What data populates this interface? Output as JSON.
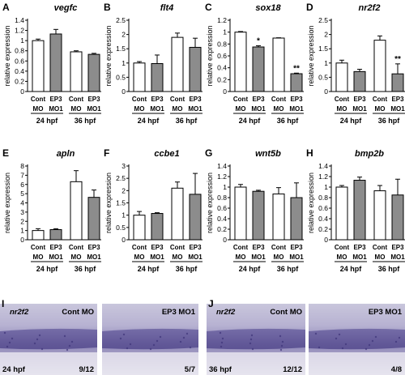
{
  "chart_data": [
    {
      "type": "bar",
      "panel": "A",
      "title": "vegfc",
      "ylabel": "relative expression",
      "ylim": [
        0,
        1.4
      ],
      "yticks": [
        "0",
        "0.2",
        "0.4",
        "0.6",
        "0.8",
        "1",
        "1.2",
        "1.4"
      ],
      "categories": [
        [
          "Cont",
          "MO"
        ],
        [
          "EP3",
          "MO1"
        ],
        [
          "Cont",
          "MO"
        ],
        [
          "EP3",
          "MO1"
        ]
      ],
      "groups": [
        "24 hpf",
        "36 hpf"
      ],
      "values": [
        1.0,
        1.13,
        0.78,
        0.73
      ],
      "errors": [
        0.03,
        0.09,
        0.02,
        0.02
      ],
      "significance": [
        "",
        "",
        "",
        ""
      ]
    },
    {
      "type": "bar",
      "panel": "B",
      "title": "flt4",
      "ylabel": "relative expression",
      "ylim": [
        0,
        2.5
      ],
      "yticks": [
        "0",
        "0.5",
        "1",
        "1.5",
        "2",
        "2.5"
      ],
      "categories": [
        [
          "Cont",
          "MO"
        ],
        [
          "EP3",
          "MO1"
        ],
        [
          "Cont",
          "MO"
        ],
        [
          "EP3",
          "MO1"
        ]
      ],
      "groups": [
        "24 hpf",
        "36 hpf"
      ],
      "values": [
        1.0,
        0.98,
        1.9,
        1.55
      ],
      "errors": [
        0.05,
        0.3,
        0.15,
        0.32
      ],
      "significance": [
        "",
        "",
        "",
        ""
      ]
    },
    {
      "type": "bar",
      "panel": "C",
      "title": "sox18",
      "ylabel": "relative expression",
      "ylim": [
        0,
        1.2
      ],
      "yticks": [
        "0",
        "0.2",
        "0.4",
        "0.6",
        "0.8",
        "1",
        "1.2"
      ],
      "categories": [
        [
          "Cont",
          "MO"
        ],
        [
          "EP3",
          "MO1"
        ],
        [
          "Cont",
          "MO"
        ],
        [
          "EP3",
          "MO1"
        ]
      ],
      "groups": [
        "24 hpf",
        "36 hpf"
      ],
      "values": [
        1.0,
        0.75,
        0.9,
        0.3
      ],
      "errors": [
        0.01,
        0.02,
        0.005,
        0.01
      ],
      "significance": [
        "",
        "*",
        "",
        "**"
      ]
    },
    {
      "type": "bar",
      "panel": "D",
      "title": "nr2f2",
      "ylabel": "relative expression",
      "ylim": [
        0,
        2.5
      ],
      "yticks": [
        "0",
        "0.5",
        "1",
        "1.5",
        "2",
        "2.5"
      ],
      "categories": [
        [
          "Cont",
          "MO"
        ],
        [
          "EP3",
          "MO1"
        ],
        [
          "Cont",
          "MO"
        ],
        [
          "EP3",
          "MO1"
        ]
      ],
      "groups": [
        "24 hpf",
        "36 hpf"
      ],
      "values": [
        1.0,
        0.7,
        1.8,
        0.62
      ],
      "errors": [
        0.1,
        0.08,
        0.15,
        0.35
      ],
      "significance": [
        "",
        "",
        "",
        "**"
      ]
    },
    {
      "type": "bar",
      "panel": "E",
      "title": "apln",
      "ylabel": "relative expression",
      "ylim": [
        0,
        8
      ],
      "yticks": [
        "0",
        "1",
        "2",
        "3",
        "4",
        "5",
        "6",
        "7",
        "8"
      ],
      "categories": [
        [
          "Cont",
          "MO"
        ],
        [
          "EP3",
          "MO1"
        ],
        [
          "Cont",
          "MO"
        ],
        [
          "EP3",
          "MO1"
        ]
      ],
      "groups": [
        "24 hpf",
        "36 hpf"
      ],
      "values": [
        1.0,
        1.1,
        6.3,
        4.6
      ],
      "errors": [
        0.2,
        0.1,
        1.2,
        0.8
      ],
      "significance": [
        "",
        "",
        "",
        ""
      ]
    },
    {
      "type": "bar",
      "panel": "F",
      "title": "ccbe1",
      "ylabel": "relative expression",
      "ylim": [
        0,
        3
      ],
      "yticks": [
        "0",
        "0.5",
        "1",
        "1.5",
        "2",
        "2.5",
        "3"
      ],
      "categories": [
        [
          "Cont",
          "MO"
        ],
        [
          "EP3",
          "MO1"
        ],
        [
          "Cont",
          "MO"
        ],
        [
          "EP3",
          "MO1"
        ]
      ],
      "groups": [
        "24 hpf",
        "36 hpf"
      ],
      "values": [
        1.0,
        1.07,
        2.1,
        1.85
      ],
      "errors": [
        0.15,
        0.03,
        0.25,
        0.85
      ],
      "significance": [
        "",
        "",
        "",
        ""
      ]
    },
    {
      "type": "bar",
      "panel": "G",
      "title": "wnt5b",
      "ylabel": "relative expression",
      "ylim": [
        0,
        1.4
      ],
      "yticks": [
        "0",
        "0.2",
        "0.4",
        "0.6",
        "0.8",
        "1",
        "1.2",
        "1.4"
      ],
      "categories": [
        [
          "Cont",
          "MO"
        ],
        [
          "EP3",
          "MO1"
        ],
        [
          "Cont",
          "MO"
        ],
        [
          "EP3",
          "MO1"
        ]
      ],
      "groups": [
        "24 hpf",
        "36 hpf"
      ],
      "values": [
        1.0,
        0.92,
        0.87,
        0.8
      ],
      "errors": [
        0.05,
        0.02,
        0.12,
        0.28
      ],
      "significance": [
        "",
        "",
        "",
        ""
      ]
    },
    {
      "type": "bar",
      "panel": "H",
      "title": "bmp2b",
      "ylabel": "relative expression",
      "ylim": [
        0,
        1.4
      ],
      "yticks": [
        "0",
        "0.2",
        "0.4",
        "0.6",
        "0.8",
        "1",
        "1.2",
        "1.4"
      ],
      "categories": [
        [
          "Cont",
          "MO"
        ],
        [
          "EP3",
          "MO1"
        ],
        [
          "Cont",
          "MO"
        ],
        [
          "EP3",
          "MO1"
        ]
      ],
      "groups": [
        "24 hpf",
        "36 hpf"
      ],
      "values": [
        1.0,
        1.13,
        0.93,
        0.85
      ],
      "errors": [
        0.03,
        0.06,
        0.1,
        0.3
      ],
      "significance": [
        "",
        "",
        "",
        ""
      ]
    }
  ],
  "colors": {
    "control_bar": "#ffffff",
    "ep3_bar": "#8c8c8c",
    "axis": "#000000"
  },
  "ish_panels": [
    {
      "letter": "I",
      "gene": "nr2f2",
      "stage": "24 hpf",
      "images": [
        {
          "label": "Cont MO",
          "count": "9/12"
        },
        {
          "label": "EP3 MO1",
          "count": "5/7"
        }
      ]
    },
    {
      "letter": "J",
      "gene": "nr2f2",
      "stage": "36 hpf",
      "images": [
        {
          "label": "Cont MO",
          "count": "12/12"
        },
        {
          "label": "EP3 MO1",
          "count": "4/8"
        }
      ]
    }
  ]
}
